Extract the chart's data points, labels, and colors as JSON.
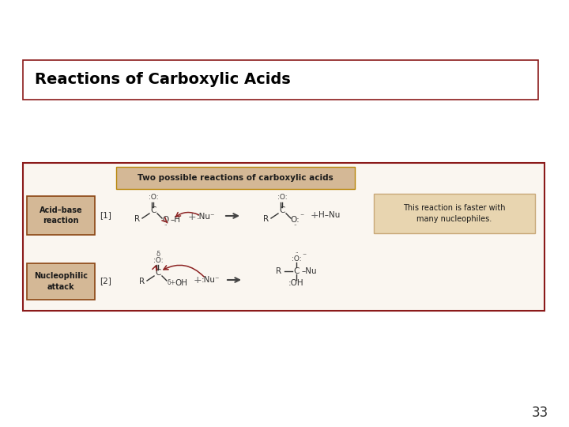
{
  "title": "Reactions of Carboxylic Acids",
  "title_box_color": "#ffffff",
  "title_border_color": "#8b1a1a",
  "title_fontsize": 14,
  "page_number": "33",
  "background_color": "#ffffff",
  "outer_box_color": "#8b1a1a",
  "outer_box_bg": "#faf6f0",
  "inner_header_text": "Two possible reactions of carboxylic acids",
  "inner_header_bg": "#d4b896",
  "inner_header_border": "#b8860b",
  "label_bg": "#d4b896",
  "label_border": "#8b4513",
  "reaction1_label": "Acid–base\nreaction",
  "reaction2_label": "Nucleophilic\nattack",
  "step1": "[1]",
  "step2": "[2]",
  "note_text": "This reaction is faster with\nmany nucleophiles.",
  "note_bg": "#e8d5b0",
  "note_border": "#c8a878",
  "chem_color": "#333333",
  "arrow_color": "#8b2020",
  "rxn_arrow_color": "#555555"
}
